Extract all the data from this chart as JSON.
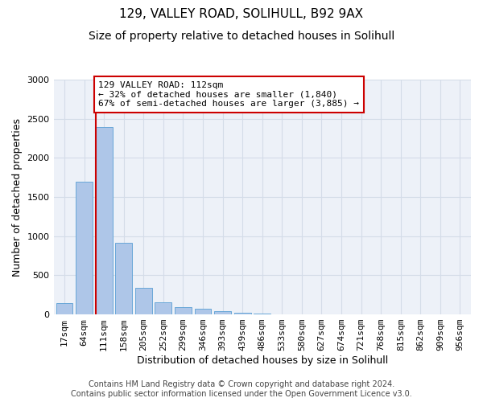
{
  "title1": "129, VALLEY ROAD, SOLIHULL, B92 9AX",
  "title2": "Size of property relative to detached houses in Solihull",
  "xlabel": "Distribution of detached houses by size in Solihull",
  "ylabel": "Number of detached properties",
  "categories": [
    "17sqm",
    "64sqm",
    "111sqm",
    "158sqm",
    "205sqm",
    "252sqm",
    "299sqm",
    "346sqm",
    "393sqm",
    "439sqm",
    "486sqm",
    "533sqm",
    "580sqm",
    "627sqm",
    "674sqm",
    "721sqm",
    "768sqm",
    "815sqm",
    "862sqm",
    "909sqm",
    "956sqm"
  ],
  "values": [
    140,
    1700,
    2390,
    910,
    340,
    155,
    90,
    75,
    45,
    25,
    10,
    5,
    2,
    0,
    0,
    0,
    0,
    0,
    0,
    0,
    0
  ],
  "bar_color": "#aec6e8",
  "bar_edge_color": "#5a9fd4",
  "highlight_bar_index": 2,
  "highlight_color": "#cc0000",
  "annotation_text": "129 VALLEY ROAD: 112sqm\n← 32% of detached houses are smaller (1,840)\n67% of semi-detached houses are larger (3,885) →",
  "annotation_box_color": "#ffffff",
  "annotation_box_edge": "#cc0000",
  "ylim": [
    0,
    3000
  ],
  "yticks": [
    0,
    500,
    1000,
    1500,
    2000,
    2500,
    3000
  ],
  "grid_color": "#d4dce8",
  "background_color": "#edf1f8",
  "footer": "Contains HM Land Registry data © Crown copyright and database right 2024.\nContains public sector information licensed under the Open Government Licence v3.0.",
  "title_fontsize": 11,
  "subtitle_fontsize": 10,
  "xlabel_fontsize": 9,
  "ylabel_fontsize": 9,
  "footer_fontsize": 7,
  "tick_fontsize": 8,
  "annot_fontsize": 8
}
